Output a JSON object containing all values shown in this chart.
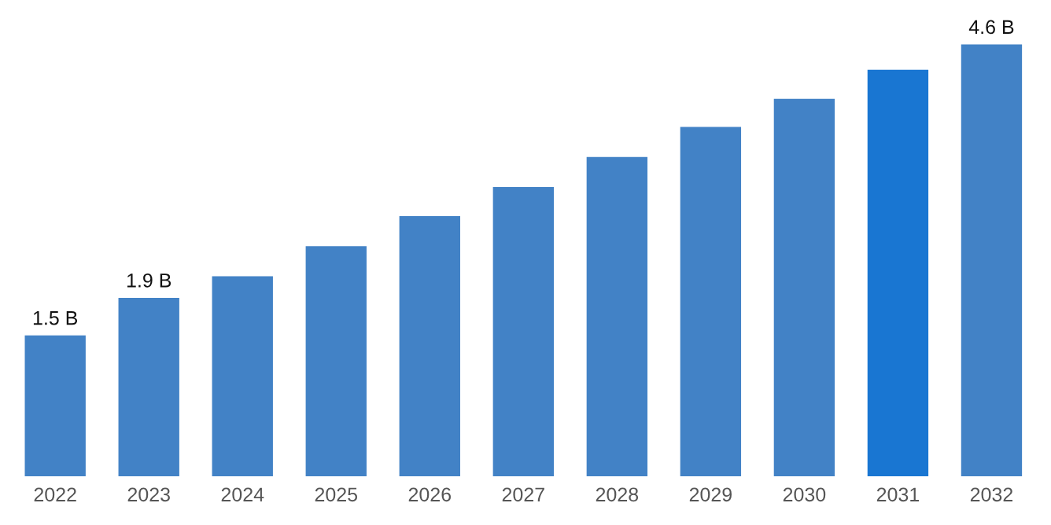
{
  "chart_data": {
    "type": "bar",
    "categories": [
      "2022",
      "2023",
      "2024",
      "2025",
      "2026",
      "2027",
      "2028",
      "2029",
      "2030",
      "2031",
      "2032"
    ],
    "values": [
      1.5,
      1.9,
      2.13,
      2.45,
      2.77,
      3.08,
      3.4,
      3.72,
      4.02,
      4.33,
      4.6
    ],
    "colors": [
      "#4282c6",
      "#4282c6",
      "#4282c6",
      "#4282c6",
      "#4282c6",
      "#4282c6",
      "#4282c6",
      "#4282c6",
      "#4282c6",
      "#1976d2",
      "#4282c6"
    ],
    "value_labels": [
      "1.5 B",
      "1.9 B",
      null,
      null,
      null,
      null,
      null,
      null,
      null,
      null,
      "4.6 B"
    ],
    "grid": false,
    "legend": false
  }
}
